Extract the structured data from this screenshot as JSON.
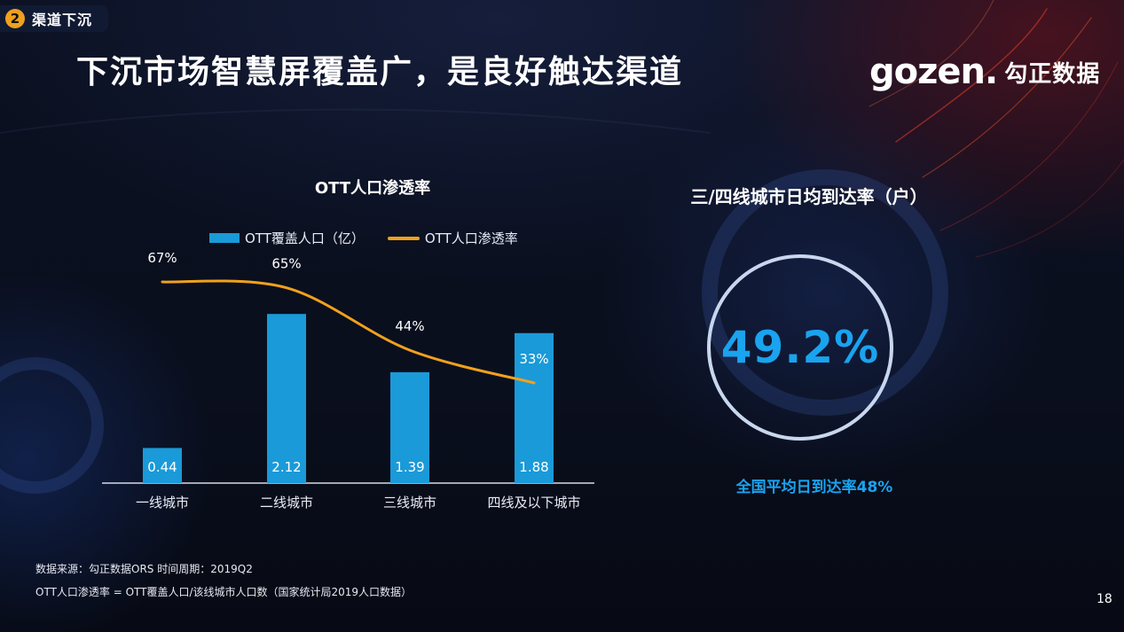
{
  "section": {
    "number": "2",
    "label": "渠道下沉"
  },
  "title": "下沉市场智慧屏覆盖广，是良好触达渠道",
  "logo": {
    "mark": "gozen.",
    "cn": "勾正数据"
  },
  "chart_data": {
    "type": "bar",
    "title": "OTT人口渗透率",
    "categories": [
      "一线城市",
      "二线城市",
      "三线城市",
      "四线及以下城市"
    ],
    "series": [
      {
        "name": "OTT覆盖人口（亿）",
        "type": "bar",
        "values": [
          0.44,
          2.12,
          1.39,
          1.88
        ],
        "labels": [
          "0.44",
          "2.12",
          "1.39",
          "1.88"
        ],
        "color": "#1a9ad8"
      },
      {
        "name": "OTT人口渗透率",
        "type": "line",
        "values": [
          67,
          65,
          44,
          33
        ],
        "labels": [
          "67%",
          "65%",
          "44%",
          "33%"
        ],
        "color": "#f0a11c"
      }
    ],
    "legend": "top",
    "grid": false
  },
  "right_panel": {
    "title": "三/四线城市日均到达率（户）",
    "value": "49.2%",
    "caption": "全国平均日到达率48%"
  },
  "notes": [
    "数据来源：勾正数据ORS  时间周期：2019Q2",
    "OTT人口渗透率 = OTT覆盖人口/该线城市人口数（国家统计局2019人口数据）"
  ],
  "page_number": "18",
  "colors": {
    "accent_blue": "#1aa3ef",
    "bar_blue": "#1a9ad8",
    "line_orange": "#f0a11c",
    "tag_orange": "#f0a11c"
  }
}
